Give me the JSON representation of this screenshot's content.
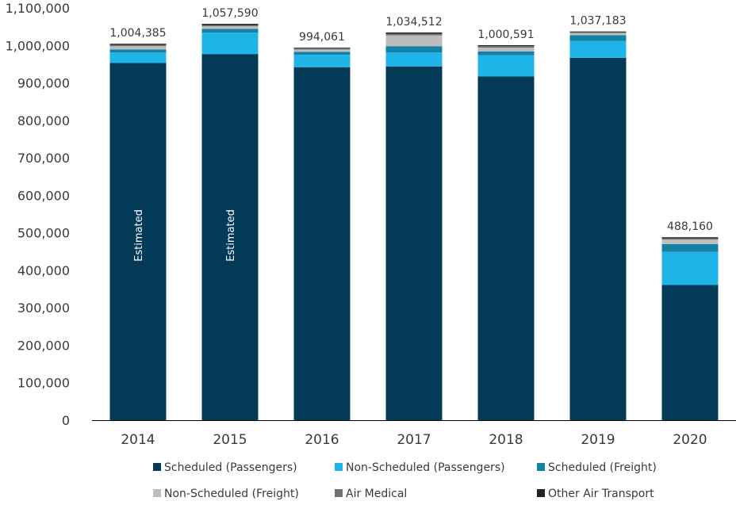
{
  "chart_data": {
    "type": "bar",
    "stacked": true,
    "title": "",
    "xlabel": "",
    "ylabel": "",
    "ylim": [
      0,
      1100000
    ],
    "yticks": [
      0,
      100000,
      200000,
      300000,
      400000,
      500000,
      600000,
      700000,
      800000,
      900000,
      1000000,
      1100000
    ],
    "ytick_labels": [
      "0",
      "100,000",
      "200,000",
      "300,000",
      "400,000",
      "500,000",
      "600,000",
      "700,000",
      "800,000",
      "900,000",
      "1,000,000",
      "1,100,000"
    ],
    "grid": false,
    "legend_position": "bottom",
    "categories": [
      "2014",
      "2015",
      "2016",
      "2017",
      "2018",
      "2019",
      "2020"
    ],
    "series": [
      {
        "name": "Scheduled (Passengers)",
        "color": "#033a58",
        "values": [
          953000,
          977000,
          942000,
          944000,
          917000,
          967000,
          361000
        ]
      },
      {
        "name": "Non-Scheduled (Passengers)",
        "color": "#1fb4e8",
        "values": [
          28000,
          57000,
          33000,
          37000,
          57000,
          45000,
          88000
        ]
      },
      {
        "name": "Scheduled (Freight)",
        "color": "#1580a5",
        "values": [
          8000,
          10000,
          8000,
          17000,
          10000,
          15000,
          21000
        ]
      },
      {
        "name": "Non-Scheduled (Freight)",
        "color": "#bdbdbd",
        "values": [
          9000,
          7000,
          6000,
          29000,
          10000,
          6000,
          12000
        ]
      },
      {
        "name": "Air Medical",
        "color": "#6f7376",
        "values": [
          3500,
          3500,
          3500,
          4000,
          4000,
          2000,
          3000
        ]
      },
      {
        "name": "Other Air Transport",
        "color": "#222222",
        "values": [
          2885,
          3090,
          1561,
          3512,
          2591,
          2183,
          3160
        ]
      }
    ],
    "totals": [
      "1,004,385",
      "1,057,590",
      "994,061",
      "1,034,512",
      "1,000,591",
      "1,037,183",
      "488,160"
    ],
    "annotations": [
      {
        "category": "2014",
        "text": "Estimated"
      },
      {
        "category": "2015",
        "text": "Estimated"
      }
    ]
  }
}
